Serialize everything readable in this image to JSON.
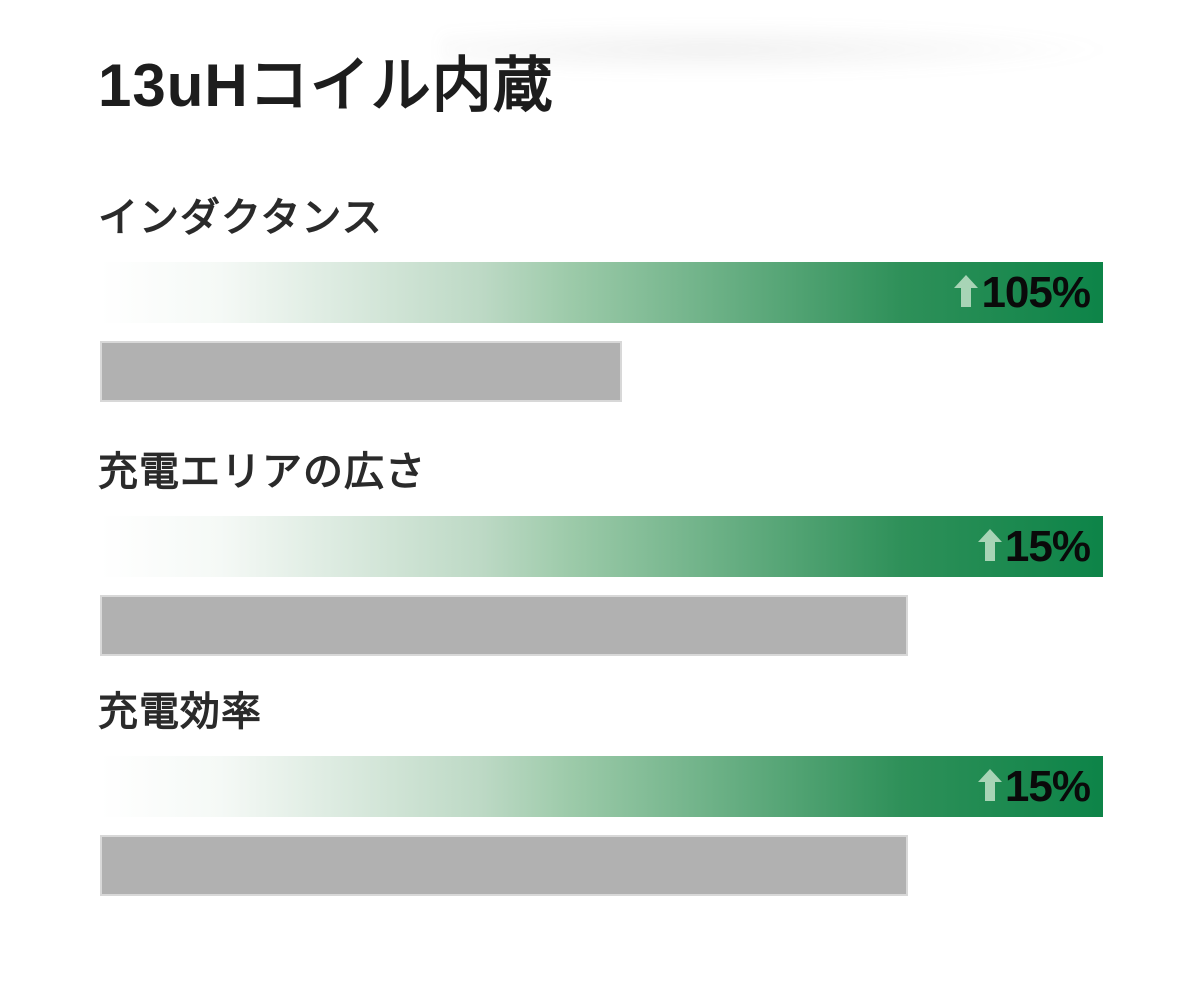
{
  "title": "13uHコイル内蔵",
  "sections": [
    {
      "label": "インダクタンス",
      "increase": "105%",
      "arrow_icon": "up-arrow",
      "gray_width_pct": 52
    },
    {
      "label": "充電エリアの広さ",
      "increase": "15%",
      "arrow_icon": "up-arrow",
      "gray_width_pct": 80.6
    },
    {
      "label": "充電効率",
      "increase": "15%",
      "arrow_icon": "up-arrow",
      "gray_width_pct": 80.6
    }
  ],
  "colors": {
    "background": "#ffffff",
    "title_text": "#1d1d1d",
    "label_text": "#2a2a2a",
    "green_gradient_start": "#ffffff",
    "green_gradient_mid": "#9ccaa9",
    "green_gradient_end": "#0d8448",
    "arrow_green": "#a8d4b6",
    "percent_text": "#0a0a0a",
    "gray_bar": "#b1b1b1",
    "gray_bar_edge": "#d8d8d8"
  },
  "chart_data": {
    "type": "bar",
    "orientation": "horizontal",
    "title": "13uHコイル内蔵",
    "categories": [
      "インダクタンス",
      "充電エリアの広さ",
      "充電効率"
    ],
    "series": [
      {
        "name": "green-gradient-bar (improved value)",
        "bar_length_pct_of_track": [
          100,
          100,
          100
        ],
        "data_labels": [
          "↑105%",
          "↑15%",
          "↑15%"
        ]
      },
      {
        "name": "gray-bar (baseline)",
        "bar_length_pct_of_track": [
          52,
          80.6,
          80.6
        ],
        "data_labels": []
      }
    ],
    "axes": "none",
    "grid": false,
    "legend_position": "none"
  }
}
